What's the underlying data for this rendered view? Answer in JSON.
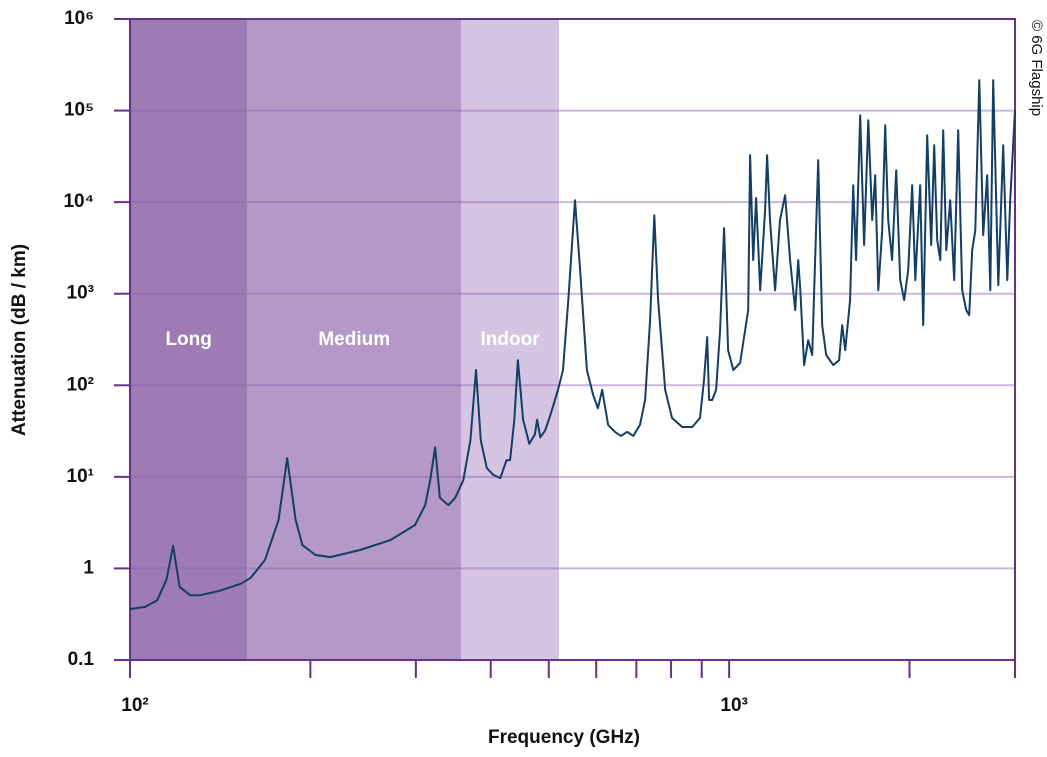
{
  "chart_data": {
    "type": "line",
    "xlabel": "Frequency (GHz)",
    "ylabel": "Attenuation (dB / km)",
    "credit": "© 6G Flagship",
    "xscale": "log",
    "yscale": "log",
    "grid": true,
    "color": "#123f63",
    "xlim": [
      100,
      3000
    ],
    "ylim": [
      0.1,
      1000000
    ],
    "xticks": [
      {
        "value": 100,
        "label": "10²"
      },
      {
        "value": 1000,
        "label": "10³"
      }
    ],
    "xminorticks": [
      200,
      300,
      400,
      500,
      600,
      700,
      800,
      900,
      2000,
      3000
    ],
    "yticks": [
      0.1,
      1,
      {
        "value": 10,
        "label": "10¹"
      },
      {
        "value": 100,
        "label": "10²"
      },
      {
        "value": 1000,
        "label": "10³"
      },
      {
        "value": 10000,
        "label": "10⁴"
      },
      {
        "value": 100000,
        "label": "10⁵"
      },
      {
        "value": 1000000,
        "label": "10⁶"
      }
    ],
    "regions": [
      {
        "label": "Long",
        "from": 100,
        "to": 157,
        "color": "#9e7bb5"
      },
      {
        "label": "Medium",
        "from": 157,
        "to": 357,
        "color": "#b499c8"
      },
      {
        "label": "Indoor",
        "from": 357,
        "to": 520,
        "color": "#d5c5e2"
      }
    ],
    "x": [
      100,
      106,
      111,
      115,
      118,
      121,
      126,
      131,
      141,
      153,
      159,
      168,
      177,
      183,
      189,
      194,
      204,
      216,
      242,
      272,
      299,
      311,
      317,
      323,
      329,
      340,
      349,
      360,
      370,
      378,
      385,
      394,
      404,
      415,
      425,
      431,
      438,
      444,
      453,
      464,
      474,
      478,
      484,
      493,
      503,
      518,
      528,
      539,
      553,
      564,
      579,
      593,
      604,
      614,
      628,
      645,
      660,
      676,
      692,
      710,
      724,
      738,
      750,
      761,
      782,
      803,
      835,
      868,
      894,
      908,
      919,
      926,
      937,
      951,
      966,
      981,
      996,
      1016,
      1043,
      1076,
      1084,
      1097,
      1109,
      1127,
      1148,
      1157,
      1170,
      1193,
      1216,
      1240,
      1264,
      1289,
      1304,
      1314,
      1334,
      1355,
      1376,
      1408,
      1430,
      1452,
      1492,
      1526,
      1544,
      1562,
      1592,
      1611,
      1629,
      1655,
      1680,
      1707,
      1733,
      1753,
      1774,
      1801,
      1822,
      1843,
      1871,
      1900,
      1930,
      1960,
      1990,
      2021,
      2045,
      2084,
      2108,
      2141,
      2174,
      2199,
      2225,
      2251,
      2277,
      2304,
      2339,
      2375,
      2412,
      2449,
      2487,
      2516,
      2545,
      2575,
      2615,
      2655,
      2696,
      2728,
      2759,
      2813,
      2867,
      2912,
      2945,
      3000
    ],
    "values": [
      0.36,
      0.38,
      0.45,
      0.75,
      1.76,
      0.63,
      0.51,
      0.51,
      0.57,
      0.68,
      0.79,
      1.24,
      3.4,
      16,
      3.4,
      1.8,
      1.4,
      1.33,
      1.59,
      2.04,
      2.98,
      4.9,
      9.2,
      21,
      5.9,
      4.9,
      5.9,
      9.2,
      25,
      147,
      25,
      12.5,
      10.5,
      9.7,
      15.2,
      15.2,
      42,
      188,
      42,
      23,
      29,
      42,
      27,
      32,
      47,
      89,
      147,
      851,
      10500,
      1810,
      147,
      78,
      56,
      89,
      37,
      31,
      28,
      31,
      28,
      37,
      69,
      515,
      7210,
      851,
      89,
      44,
      35,
      35,
      44,
      114,
      336,
      69,
      69,
      89,
      401,
      5200,
      242,
      147,
      175,
      662,
      32600,
      2330,
      11100,
      1090,
      8180,
      32600,
      6360,
      1090,
      6360,
      11900,
      2330,
      662,
      2330,
      1150,
      166,
      311,
      214,
      28800,
      454,
      214,
      166,
      188,
      454,
      242,
      851,
      15300,
      2330,
      89100,
      3400,
      78500,
      6360,
      19700,
      1090,
      4940,
      69300,
      6360,
      2330,
      22300,
      1410,
      851,
      1810,
      15300,
      1410,
      15300,
      454,
      53800,
      3400,
      41900,
      3850,
      2330,
      61100,
      2990,
      10500,
      1410,
      61100,
      1090,
      662,
      584,
      2990,
      4940,
      215000,
      4370,
      19700,
      1090,
      215000,
      1240,
      41900,
      1410,
      10500,
      101000
    ]
  }
}
